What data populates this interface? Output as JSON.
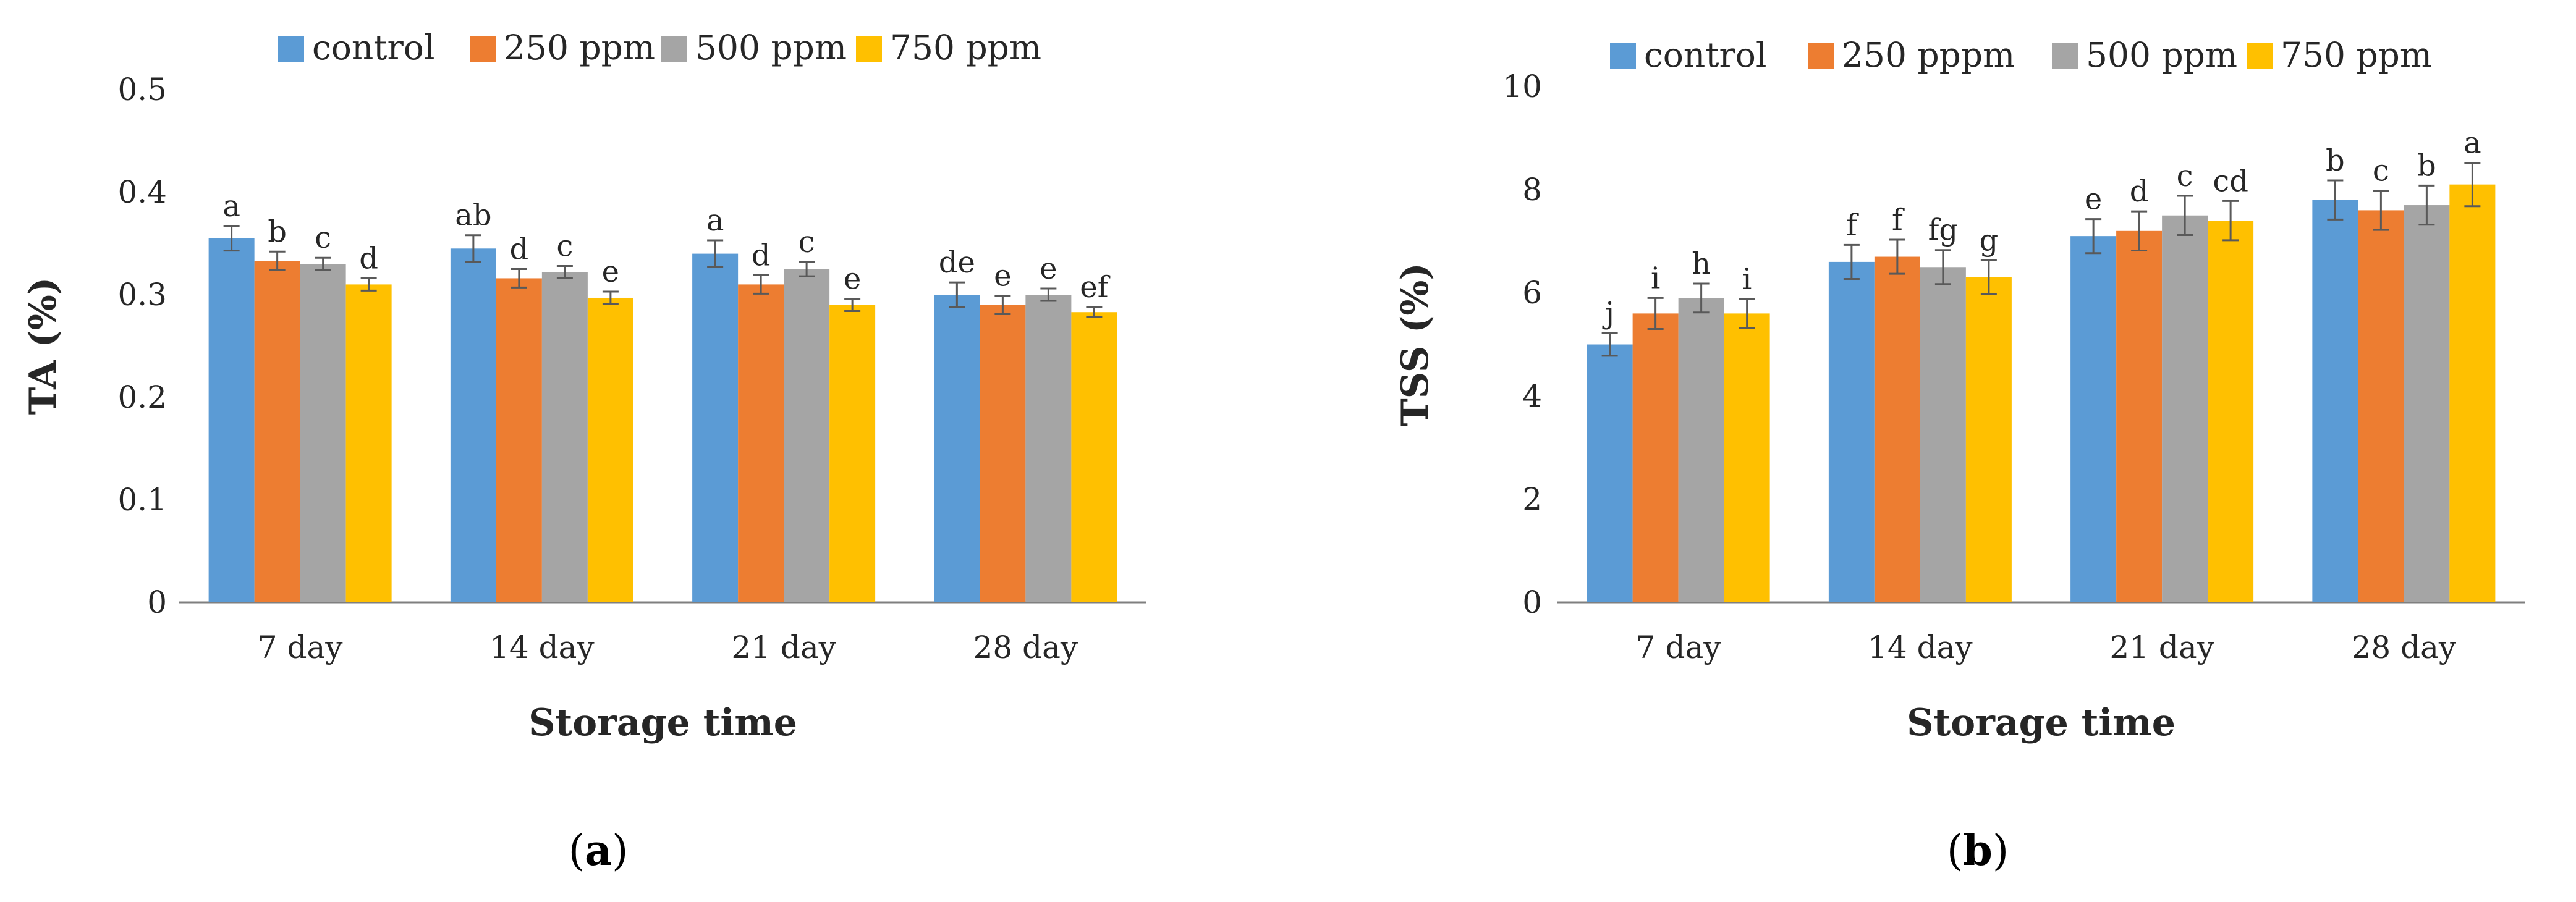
{
  "colors": {
    "control": "#5B9BD5",
    "250 ppm": "#ED7D31",
    "500 ppm": "#A5A5A5",
    "750 ppm": "#FFC000",
    "axis": "#7F7F7F",
    "error_bar": "#595959"
  },
  "panels": [
    {
      "open": "(",
      "letter": "a",
      "close": ")"
    },
    {
      "open": "(",
      "letter": "b",
      "close": ")"
    }
  ],
  "chart_data": [
    {
      "type": "bar",
      "title": "",
      "xlabel": "Storage time",
      "ylabel": "TA (%)",
      "ylim": [
        0,
        0.5
      ],
      "yticks": [
        0,
        0.1,
        0.2,
        0.3,
        0.4,
        0.5
      ],
      "ytick_labels": [
        "0",
        "0.1",
        "0.2",
        "0.3",
        "0.4",
        "0.5"
      ],
      "categories": [
        "7 day",
        "14 day",
        "21 day",
        "28 day"
      ],
      "legend": [
        "control",
        "250 ppm",
        "500 ppm",
        "750 ppm"
      ],
      "legend_position": "top",
      "grid": false,
      "series": [
        {
          "name": "control",
          "values": [
            0.355,
            0.345,
            0.34,
            0.3
          ],
          "errors": [
            0.012,
            0.013,
            0.013,
            0.012
          ],
          "labels": [
            "a",
            "ab",
            "a",
            "de"
          ]
        },
        {
          "name": "250 ppm",
          "values": [
            0.333,
            0.316,
            0.31,
            0.29
          ],
          "errors": [
            0.009,
            0.009,
            0.009,
            0.009
          ],
          "labels": [
            "b",
            "d",
            "d",
            "e"
          ]
        },
        {
          "name": "500 ppm",
          "values": [
            0.33,
            0.322,
            0.325,
            0.3
          ],
          "errors": [
            0.006,
            0.006,
            0.007,
            0.006
          ],
          "labels": [
            "c",
            "c",
            "c",
            "e"
          ]
        },
        {
          "name": "750 ppm",
          "values": [
            0.31,
            0.297,
            0.29,
            0.283
          ],
          "errors": [
            0.006,
            0.006,
            0.006,
            0.005
          ],
          "labels": [
            "d",
            "e",
            "e",
            "ef"
          ]
        }
      ]
    },
    {
      "type": "bar",
      "title": "",
      "xlabel": "Storage time",
      "ylabel": "TSS (%)",
      "ylim": [
        0,
        10
      ],
      "yticks": [
        0,
        2,
        4,
        6,
        8,
        10
      ],
      "ytick_labels": [
        "0",
        "2",
        "4",
        "6",
        "8",
        "10"
      ],
      "categories": [
        "7 day",
        "14 day",
        "21 day",
        "28 day"
      ],
      "legend": [
        "control",
        "250 pppm",
        "500 ppm",
        "750 ppm"
      ],
      "legend_position": "top",
      "grid": false,
      "series": [
        {
          "name": "control",
          "values": [
            5.0,
            6.6,
            7.1,
            7.8
          ],
          "errors": [
            0.22,
            0.33,
            0.33,
            0.38
          ],
          "labels": [
            "j",
            "f",
            "e",
            "b"
          ]
        },
        {
          "name": "250 pppm",
          "values": [
            5.6,
            6.7,
            7.2,
            7.6
          ],
          "errors": [
            0.3,
            0.33,
            0.38,
            0.38
          ],
          "labels": [
            "i",
            "f",
            "d",
            "c"
          ]
        },
        {
          "name": "500 ppm",
          "values": [
            5.9,
            6.5,
            7.5,
            7.7
          ],
          "errors": [
            0.28,
            0.33,
            0.38,
            0.38
          ],
          "labels": [
            "h",
            "fg",
            "c",
            "b"
          ]
        },
        {
          "name": "750 ppm",
          "values": [
            5.6,
            6.3,
            7.4,
            8.1
          ],
          "errors": [
            0.28,
            0.33,
            0.38,
            0.42
          ],
          "labels": [
            "i",
            "g",
            "cd",
            "a"
          ]
        }
      ]
    }
  ]
}
